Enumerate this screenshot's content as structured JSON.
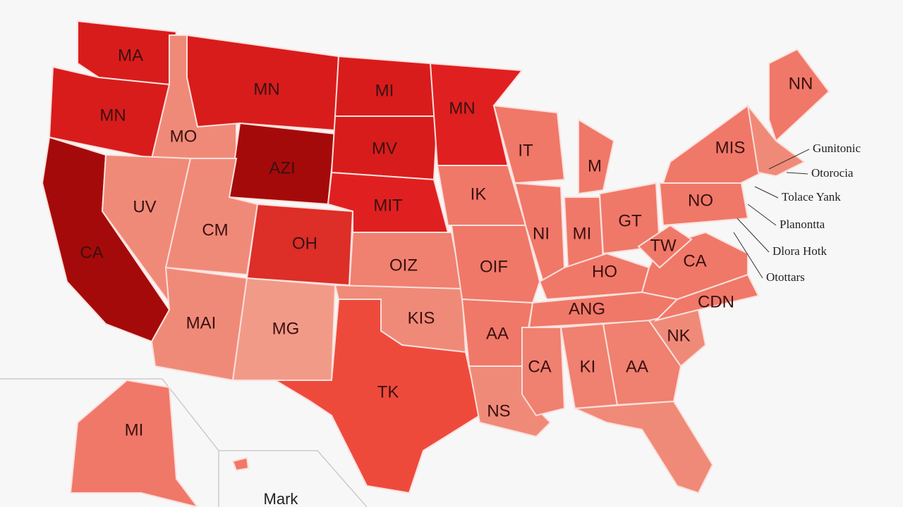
{
  "map": {
    "regions": [
      {
        "label": "MA",
        "color": "#d81c1c"
      },
      {
        "label": "MN",
        "color": "#d81c1c"
      },
      {
        "label": "CA",
        "color": "#a50a0a"
      },
      {
        "label": "MO",
        "color": "#f08a78"
      },
      {
        "label": "UV",
        "color": "#f08a78"
      },
      {
        "label": "MN",
        "color": "#d81c1c"
      },
      {
        "label": "AZI",
        "color": "#a50a0a"
      },
      {
        "label": "CM",
        "color": "#f08a78"
      },
      {
        "label": "OH",
        "color": "#dd2e28"
      },
      {
        "label": "MAI",
        "color": "#f08a78"
      },
      {
        "label": "MG",
        "color": "#f29a88"
      },
      {
        "label": "MI",
        "color": "#d81c1c"
      },
      {
        "label": "MV",
        "color": "#d81c1c"
      },
      {
        "label": "MIT",
        "color": "#e02020"
      },
      {
        "label": "OIZ",
        "color": "#f08070"
      },
      {
        "label": "KIS",
        "color": "#f08a78"
      },
      {
        "label": "TK",
        "color": "#ee4a3c"
      },
      {
        "label": "MN",
        "color": "#e02020"
      },
      {
        "label": "IK",
        "color": "#f07868"
      },
      {
        "label": "OIF",
        "color": "#f07868"
      },
      {
        "label": "AA",
        "color": "#f07868"
      },
      {
        "label": "NS",
        "color": "#f08a78"
      },
      {
        "label": "IT",
        "color": "#f07868"
      },
      {
        "label": "M",
        "color": "#f07868"
      },
      {
        "label": "NI",
        "color": "#f07868"
      },
      {
        "label": "MI",
        "color": "#f07868"
      },
      {
        "label": "GT",
        "color": "#f07868"
      },
      {
        "label": "HO",
        "color": "#f07868"
      },
      {
        "label": "ANG",
        "color": "#f07868"
      },
      {
        "label": "CA",
        "color": "#f08070"
      },
      {
        "label": "KI",
        "color": "#f08070"
      },
      {
        "label": "AA",
        "color": "#f08070"
      },
      {
        "color": "#f08a78"
      },
      {
        "label": "NK",
        "color": "#f08a78"
      },
      {
        "label": "CDN",
        "color": "#f07868"
      },
      {
        "label": "CA",
        "color": "#f07868"
      },
      {
        "label": "TW",
        "color": "#f07868"
      },
      {
        "label": "NO",
        "color": "#f07868"
      },
      {
        "label": "MIS",
        "color": "#f07868"
      },
      {
        "label": "NN",
        "color": "#f07868"
      },
      {
        "color": "#f08a78"
      },
      {
        "label": "MI",
        "color": "#f07868"
      },
      {
        "color": "#f07868"
      }
    ],
    "callouts": [
      "Gunitonic",
      "Otorocia",
      "Tolace Yank",
      "Planontta",
      "Dlora Hotk",
      "Otottars"
    ],
    "inset_label": "Mark"
  }
}
